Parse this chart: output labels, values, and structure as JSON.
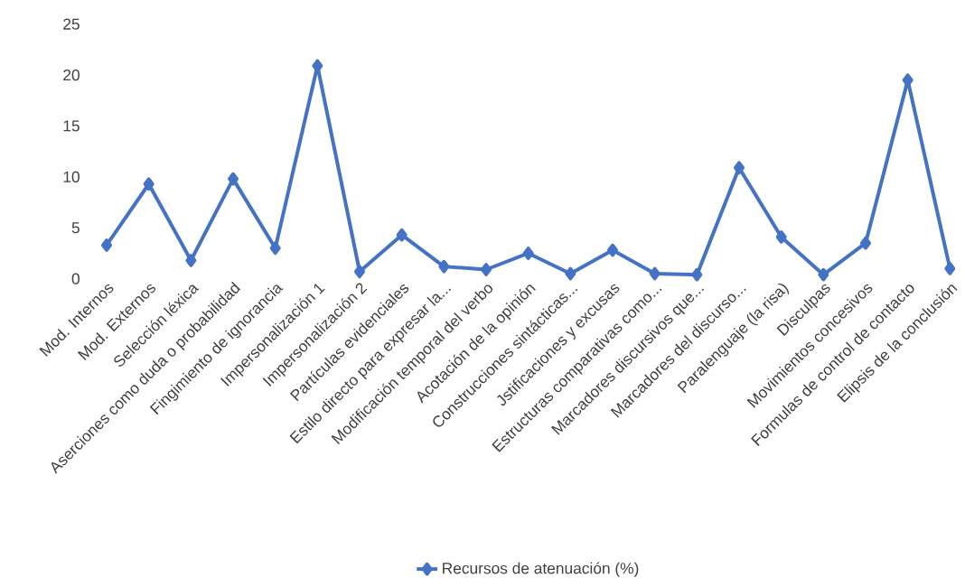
{
  "chart_data": {
    "type": "line",
    "categories": [
      "Mod. Internos",
      "Mod. Externos",
      "Selección léxica",
      "Aserciones como duda o probabilidad",
      "Fingimiento de ignorancia",
      "Impersonalización 1",
      "Impersonalización 2",
      "Partículas evidenciales",
      "Estilo directo para expresar la...",
      "Modificación temporal del verbo",
      "Acotación de la opinión",
      "Construcciones sintácticas...",
      "Jstificaciones y excusas",
      "Estructuras comparativas como...",
      "Marcadores discursivos que...",
      "Marcadores del discurso...",
      "Paralenguaje (la risa)",
      "Disculpas",
      "Movimientos concesivos",
      "Formulas de control de contacto",
      "Elipsis de la conclusión"
    ],
    "series": [
      {
        "name": "Recursos de atenuación (%)",
        "color": "#4472c4",
        "values": [
          3.3,
          9.3,
          1.8,
          9.8,
          3.0,
          20.9,
          0.7,
          4.3,
          1.2,
          0.9,
          2.5,
          0.5,
          2.8,
          0.5,
          0.4,
          10.9,
          4.1,
          0.4,
          3.5,
          19.5,
          1.0
        ]
      }
    ],
    "ylim": [
      0,
      25
    ],
    "yticks": [
      0,
      5,
      10,
      15,
      20,
      25
    ],
    "grid": false,
    "legend": "bottom",
    "marker": "diamond",
    "line_style": "solid"
  }
}
